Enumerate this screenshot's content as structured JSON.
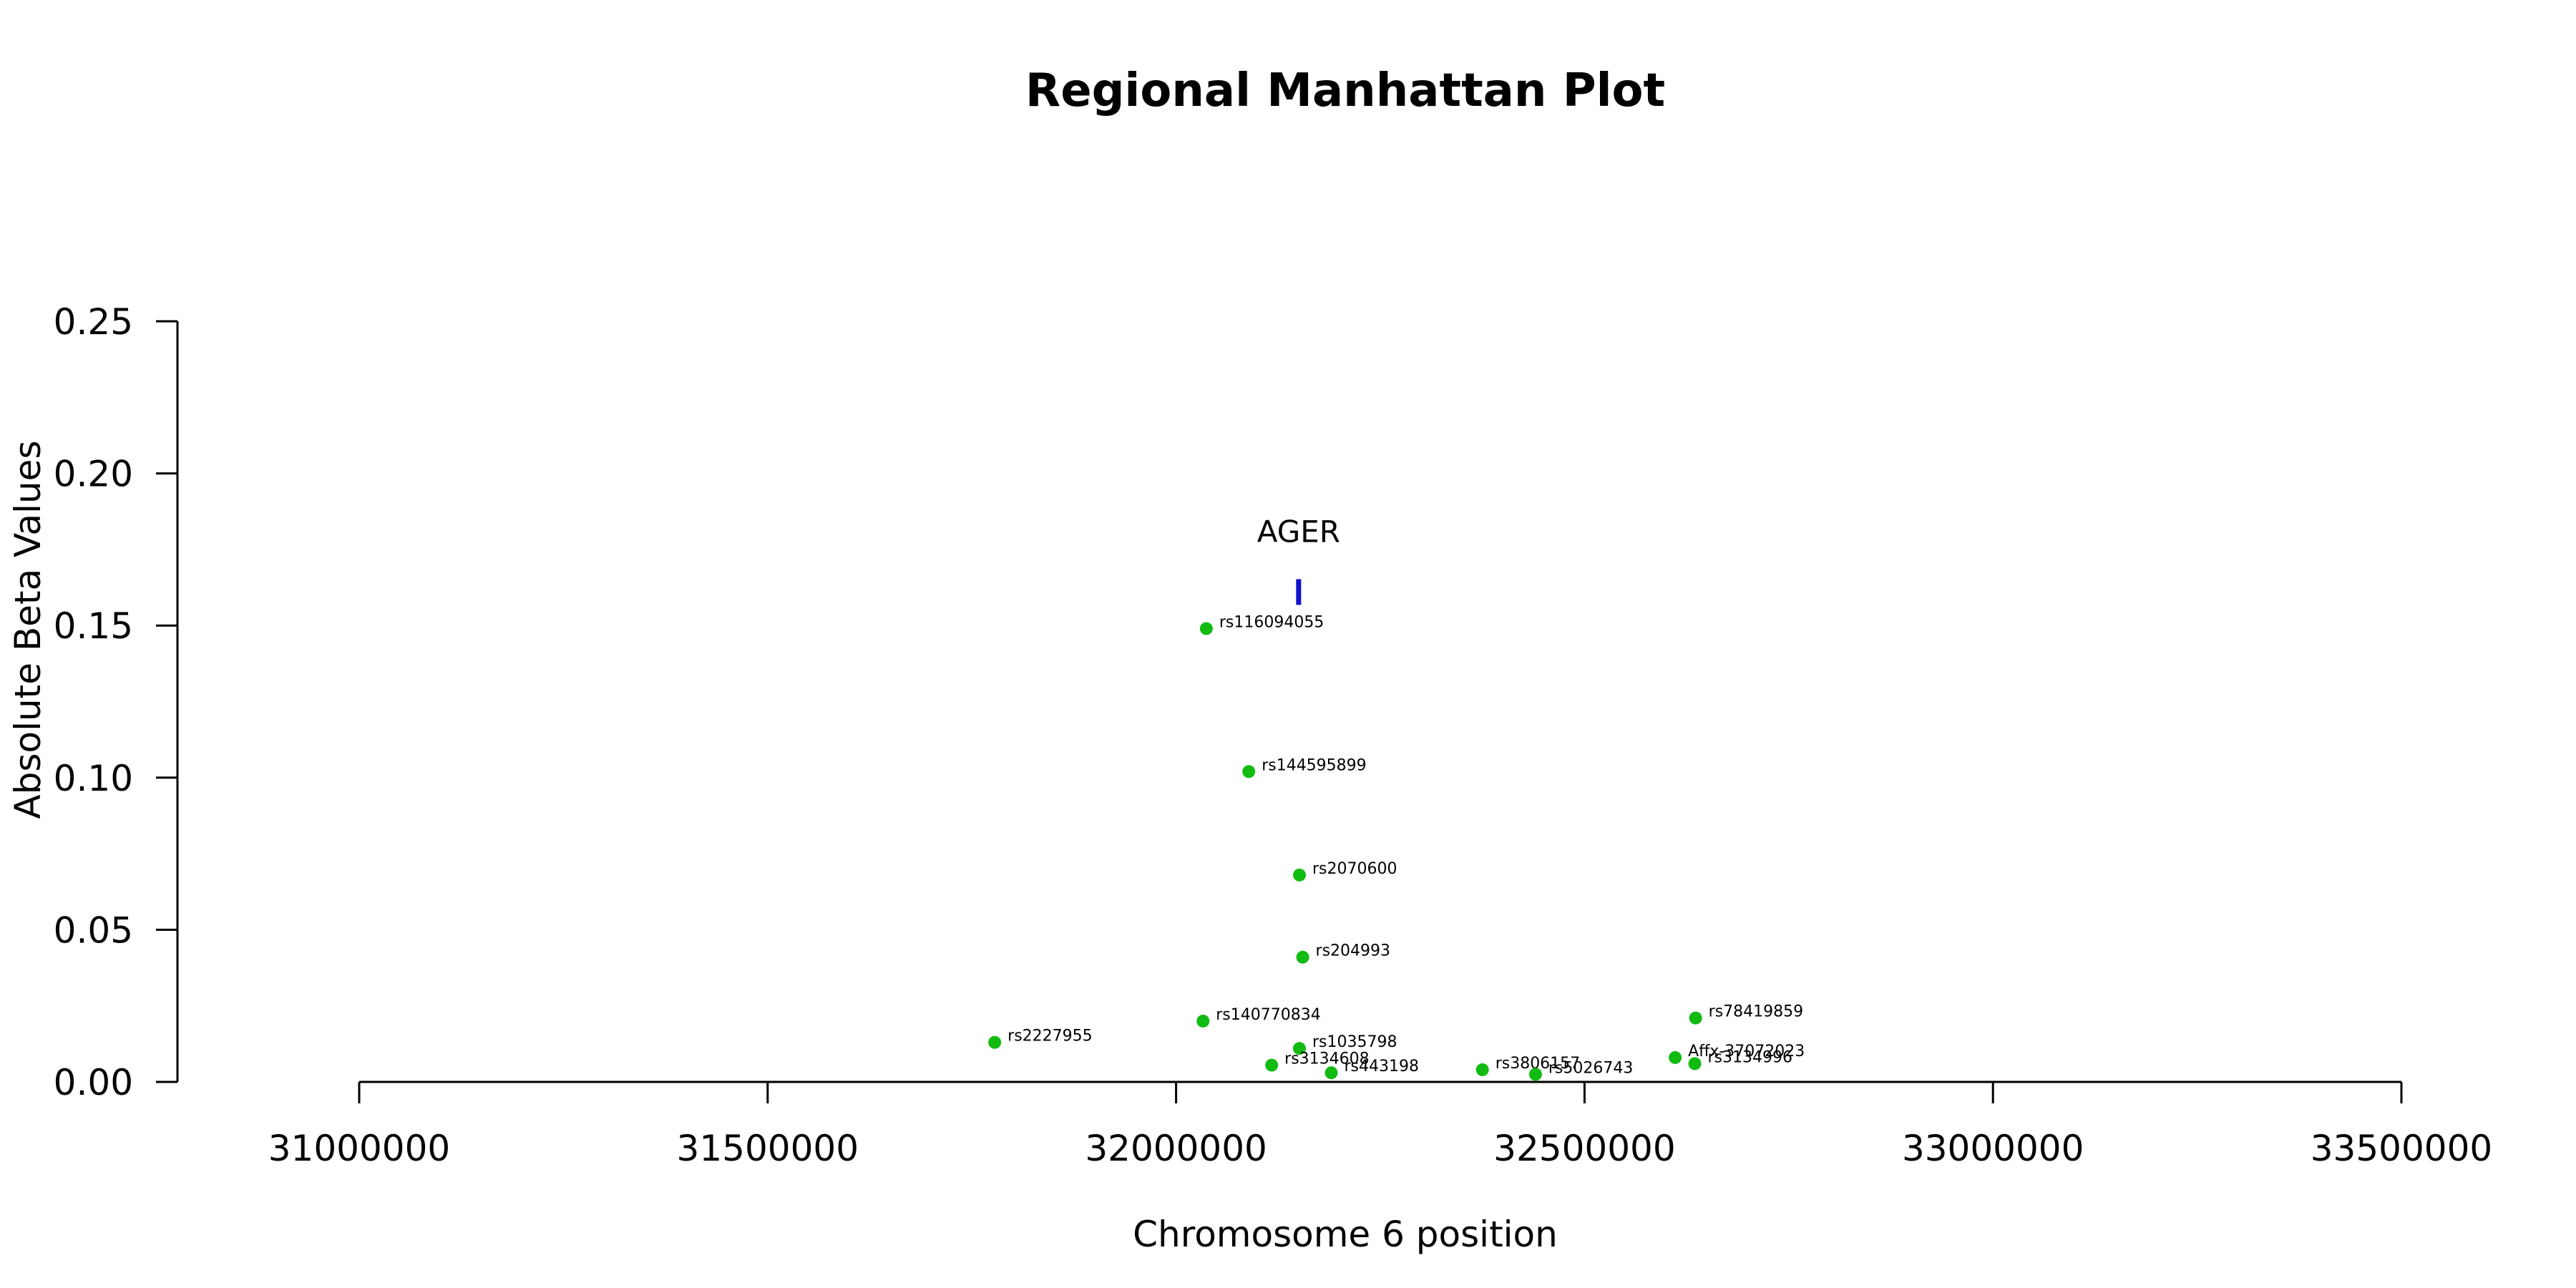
{
  "chart_data": {
    "type": "scatter",
    "title": "Regional Manhattan Plot",
    "xlabel": "Chromosome 6 position",
    "ylabel": "Absolute Beta Values",
    "xlim": [
      31000000,
      33500000
    ],
    "ylim": [
      0,
      0.25
    ],
    "x_ticks": [
      31000000,
      31500000,
      32000000,
      32500000,
      33000000,
      33500000
    ],
    "x_tick_labels": [
      "31000000",
      "31500000",
      "32000000",
      "32500000",
      "33000000",
      "33500000"
    ],
    "y_ticks": [
      0,
      0.05,
      0.1,
      0.15,
      0.2,
      0.25
    ],
    "y_tick_labels": [
      "0.00",
      "0.05",
      "0.10",
      "0.15",
      "0.20",
      "0.25"
    ],
    "grid": false,
    "point_color": "#11bb11",
    "gene_color": "#1111cc",
    "points": [
      {
        "label": "rs116094055",
        "x": 32037000,
        "y": 0.149
      },
      {
        "label": "rs144595899",
        "x": 32089000,
        "y": 0.102
      },
      {
        "label": "rs2070600",
        "x": 32151000,
        "y": 0.068
      },
      {
        "label": "rs204993",
        "x": 32155000,
        "y": 0.041
      },
      {
        "label": "rs140770834",
        "x": 32033000,
        "y": 0.02
      },
      {
        "label": "rs78419859",
        "x": 32636000,
        "y": 0.021
      },
      {
        "label": "rs2227955",
        "x": 31778000,
        "y": 0.013
      },
      {
        "label": "rs1035798",
        "x": 32151000,
        "y": 0.011
      },
      {
        "label": "rs3134608",
        "x": 32117000,
        "y": 0.0055
      },
      {
        "label": "rs443198",
        "x": 32190000,
        "y": 0.003
      },
      {
        "label": "rs3806157",
        "x": 32375000,
        "y": 0.004
      },
      {
        "label": "rs5026743",
        "x": 32440000,
        "y": 0.0025
      },
      {
        "label": "Affx-37072023",
        "x": 32611000,
        "y": 0.008
      },
      {
        "label": "rs3134996",
        "x": 32635000,
        "y": 0.006
      }
    ],
    "genes": [
      {
        "name": "AGER",
        "x": 32150000,
        "y": 0.161
      }
    ]
  }
}
